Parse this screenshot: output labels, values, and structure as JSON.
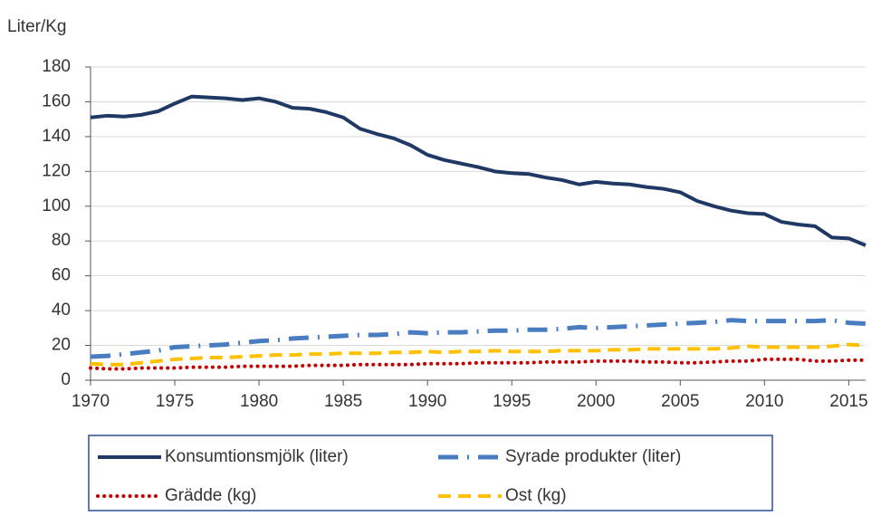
{
  "chart_data": {
    "type": "line",
    "y_label": "Liter/Kg",
    "x": [
      1970,
      1971,
      1972,
      1973,
      1974,
      1975,
      1976,
      1977,
      1978,
      1979,
      1980,
      1981,
      1982,
      1983,
      1984,
      1985,
      1986,
      1987,
      1988,
      1989,
      1990,
      1991,
      1992,
      1993,
      1994,
      1995,
      1996,
      1997,
      1998,
      1999,
      2000,
      2001,
      2002,
      2003,
      2004,
      2005,
      2006,
      2007,
      2008,
      2009,
      2010,
      2011,
      2012,
      2013,
      2014,
      2015,
      2016
    ],
    "series": [
      {
        "name": "Konsumtionsmjölk (liter)",
        "color": "#1f3864",
        "dash": "solid",
        "values": [
          151,
          152,
          151.5,
          152.5,
          154.5,
          159,
          163,
          162.5,
          162,
          161,
          162,
          160,
          156.5,
          156,
          154,
          151,
          144.5,
          141.5,
          139,
          135,
          129.5,
          126.5,
          124.5,
          122.5,
          120,
          119,
          118.5,
          116.5,
          115,
          112.5,
          114,
          113,
          112.5,
          111,
          110,
          108,
          103,
          100,
          97.5,
          96,
          95.5,
          91,
          89.5,
          88.5,
          82,
          81.5,
          77.5
        ]
      },
      {
        "name": "Syrade produkter (liter)",
        "color": "#4a7cc0",
        "dash": "dashdot",
        "values": [
          13.5,
          14,
          15,
          16,
          17,
          19,
          19.5,
          20,
          20.5,
          21.5,
          22.5,
          23,
          24,
          24.5,
          25,
          25.5,
          26,
          26,
          26.5,
          27.5,
          27,
          27.5,
          27.5,
          28,
          28.5,
          28.5,
          29,
          29,
          29.5,
          30.5,
          30,
          30.5,
          31,
          31.5,
          32,
          32.5,
          33,
          33.5,
          34.5,
          34,
          34,
          34,
          34,
          34,
          34.5,
          33,
          32.5
        ]
      },
      {
        "name": "Grädde (kg)",
        "color": "#c00000",
        "dash": "dotted",
        "values": [
          7,
          6.5,
          6.5,
          7,
          7,
          7,
          7.5,
          7.5,
          7.5,
          8,
          8,
          8,
          8,
          8.5,
          8.5,
          8.5,
          9,
          9,
          9,
          9,
          9.5,
          9.5,
          9.5,
          10,
          10,
          10,
          10,
          10.5,
          10.5,
          10.5,
          11,
          11,
          11,
          10.5,
          10.5,
          10,
          10,
          10.5,
          11,
          11,
          12,
          12,
          12,
          11,
          11,
          11.5,
          11.5
        ]
      },
      {
        "name": "Ost (kg)",
        "color": "#ffc000",
        "dash": "dashed",
        "values": [
          9.5,
          9,
          9,
          10,
          11,
          12,
          12.5,
          13,
          13,
          13.5,
          14,
          14.5,
          14.5,
          15,
          15,
          15.5,
          15.5,
          15.5,
          16,
          16,
          16.5,
          16,
          16.5,
          16.5,
          17,
          16.5,
          16.5,
          16.5,
          17,
          17,
          17,
          17.5,
          17.5,
          18,
          18,
          18,
          18,
          18,
          18.5,
          19.5,
          19,
          19,
          19,
          19,
          19.5,
          20.5,
          20
        ]
      }
    ],
    "xlim": [
      1970,
      2016
    ],
    "xticks": [
      1970,
      1975,
      1980,
      1985,
      1990,
      1995,
      2000,
      2005,
      2010,
      2015
    ],
    "ylim": [
      0,
      180
    ],
    "yticks": [
      0,
      20,
      40,
      60,
      80,
      100,
      120,
      140,
      160,
      180
    ],
    "grid": true,
    "legend": "bottom"
  }
}
